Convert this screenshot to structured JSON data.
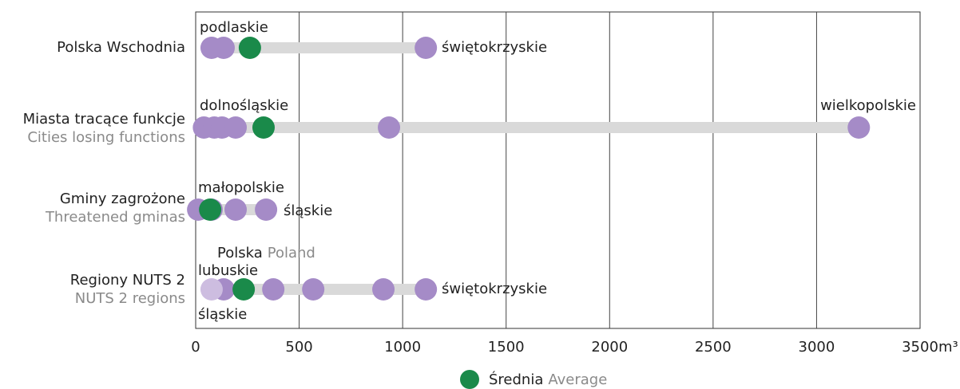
{
  "chart_data": {
    "type": "dot-range",
    "xlim": [
      0,
      3500
    ],
    "xticks": [
      0,
      500,
      1000,
      1500,
      2000,
      2500,
      3000,
      3500
    ],
    "x_unit": "m³",
    "grid": true,
    "point_color": "#a58bc7",
    "faded_color": "#cdbde0",
    "average_color": "#1a8a4a",
    "track_color": "#d9d9d9",
    "rows": [
      {
        "label": "Polska Wschodnia",
        "sublabel": null,
        "values": [
          77,
          135,
          1112
        ],
        "faded_values": [],
        "average": 262,
        "annotations": [
          "podlaskie",
          "świętokrzyskie"
        ]
      },
      {
        "label": "Miasta tracące funkcje",
        "sublabel": "Cities losing functions",
        "values": [
          40,
          90,
          127,
          193,
          934,
          3204
        ],
        "faded_values": [],
        "average": 328,
        "annotations": [
          "dolnośląskie",
          "wielkopolskie"
        ]
      },
      {
        "label": "Gminy zagrożone",
        "sublabel": "Threatened gminas",
        "values": [
          12,
          77,
          193,
          340
        ],
        "faded_values": [],
        "average": 70,
        "annotations": [
          "małopolskie",
          "śląskie"
        ]
      },
      {
        "label": "Regiony NUTS 2",
        "sublabel": "NUTS 2 regions",
        "values": [
          135,
          375,
          568,
          907,
          1112
        ],
        "faded_values": [
          77
        ],
        "average": 232,
        "annotations": [
          "lubuskie",
          "śląskie",
          "świętokrzyskie"
        ]
      }
    ],
    "reference_label": "Polska",
    "reference_label_en": "Poland",
    "legend": {
      "label": "Średnia",
      "label_en": "Average"
    }
  }
}
